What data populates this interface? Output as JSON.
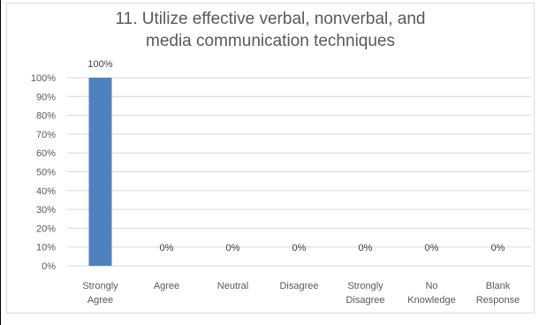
{
  "chart_data": {
    "type": "bar",
    "title_lines": [
      "11.  Utilize effective verbal, nonverbal, and",
      "media communication techniques"
    ],
    "categories": [
      [
        "Strongly",
        "Agree"
      ],
      [
        "Agree"
      ],
      [
        "Neutral"
      ],
      [
        "Disagree"
      ],
      [
        "Strongly",
        "Disagree"
      ],
      [
        "No",
        "Knowledge"
      ],
      [
        "Blank",
        "Response"
      ]
    ],
    "values": [
      100,
      0,
      0,
      0,
      0,
      0,
      0
    ],
    "data_labels": [
      "100%",
      "0%",
      "0%",
      "0%",
      "0%",
      "0%",
      "0%"
    ],
    "yticks": [
      "0%",
      "10%",
      "20%",
      "30%",
      "40%",
      "50%",
      "60%",
      "70%",
      "80%",
      "90%",
      "100%"
    ],
    "ylim": [
      0,
      100
    ],
    "grid": true,
    "legend": "none",
    "bar_color": "#4f81bd",
    "grid_color": "#d9d9d9"
  }
}
